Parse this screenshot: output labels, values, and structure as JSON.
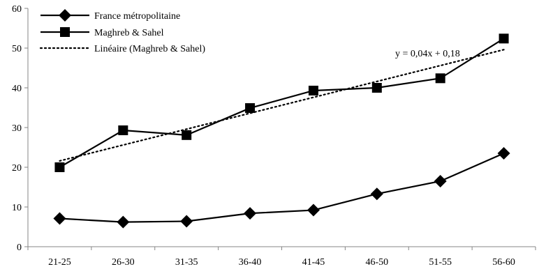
{
  "chart_data": {
    "type": "line",
    "title": "",
    "xlabel": "",
    "ylabel": "",
    "categories": [
      "21-25",
      "26-30",
      "31-35",
      "36-40",
      "41-45",
      "46-50",
      "51-55",
      "56-60"
    ],
    "ylim": [
      0,
      60
    ],
    "yticks": [
      0,
      10,
      20,
      30,
      40,
      50,
      60
    ],
    "grid": false,
    "legend_position": "top-left",
    "series": [
      {
        "name": "France métropolitaine",
        "marker": "diamond",
        "color": "#000000",
        "values": [
          7.1,
          6.2,
          6.4,
          8.4,
          9.2,
          13.3,
          16.5,
          23.5
        ]
      },
      {
        "name": "Maghreb & Sahel",
        "marker": "square",
        "color": "#000000",
        "values": [
          20.0,
          29.3,
          28.1,
          34.9,
          39.3,
          40.0,
          42.4,
          52.4
        ]
      }
    ],
    "trendline": {
      "name": "Linéaire (Maghreb & Sahel)",
      "style": "dotted",
      "color": "#000000",
      "equation": "y = 0,04x + 0,18",
      "start_value": 21.6,
      "end_value": 49.6
    }
  }
}
